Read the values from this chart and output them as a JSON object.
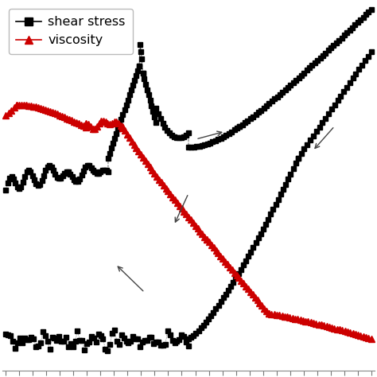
{
  "background_color": "#ffffff",
  "shear_stress_color": "#000000",
  "viscosity_color": "#cc0000",
  "legend_shear_label": "shear stress",
  "legend_viscosity_label": "viscosity",
  "arrow_color": "#444444",
  "fig_width": 4.74,
  "fig_height": 4.74,
  "dpi": 100
}
